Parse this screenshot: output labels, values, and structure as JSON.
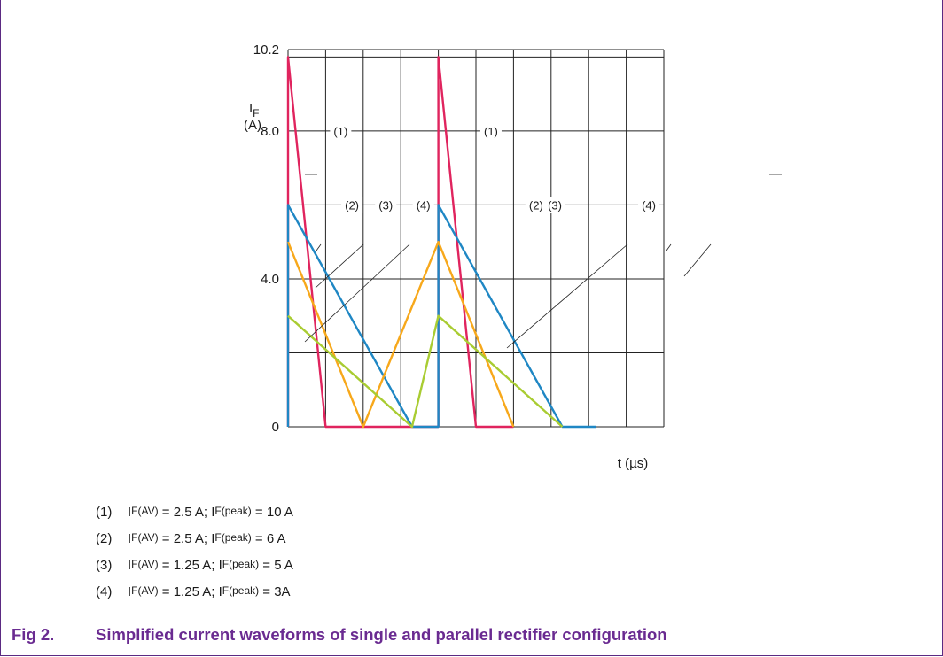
{
  "chart_data": {
    "type": "line",
    "ylabel_main": "I",
    "ylabel_sub": "F",
    "yunit": "(A)",
    "xlabel": "t (µs)",
    "ylim": [
      0,
      10.2
    ],
    "x_divisions": 10,
    "y_gridlines": [
      0,
      2,
      4,
      6,
      8,
      10,
      10.2
    ],
    "ytick_labels": [
      {
        "value": 0,
        "label": "0"
      },
      {
        "value": 4,
        "label": "4.0"
      },
      {
        "value": 8,
        "label": "8.0"
      },
      {
        "value": 10.2,
        "label": "10.2"
      }
    ],
    "series": [
      {
        "id": "1",
        "color": "#e0245e",
        "points": [
          [
            0,
            0
          ],
          [
            0,
            10
          ],
          [
            1,
            0
          ],
          [
            2,
            0
          ],
          [
            4,
            0
          ],
          [
            4,
            10
          ],
          [
            5,
            0
          ],
          [
            6,
            0
          ]
        ]
      },
      {
        "id": "2",
        "color": "#1f87c4",
        "points": [
          [
            0,
            0
          ],
          [
            0,
            6
          ],
          [
            3.3,
            0
          ],
          [
            3.4,
            0
          ],
          [
            4,
            0
          ],
          [
            4,
            6
          ],
          [
            7.3,
            0
          ],
          [
            8.2,
            0
          ]
        ]
      },
      {
        "id": "3",
        "color": "#f7a81b",
        "points": [
          [
            0,
            5
          ],
          [
            2,
            0
          ],
          [
            4,
            5
          ],
          [
            6,
            0
          ]
        ]
      },
      {
        "id": "4",
        "color": "#a9cc32",
        "points": [
          [
            0,
            3
          ],
          [
            3.3,
            0
          ],
          [
            4,
            3
          ],
          [
            7.3,
            0
          ]
        ]
      }
    ],
    "callouts": [
      {
        "text": "(1)",
        "x": 1.4,
        "y": 8.0
      },
      {
        "text": "(1)",
        "x": 5.4,
        "y": 8.0
      },
      {
        "text": "(2)",
        "x": 1.7,
        "y": 6.0
      },
      {
        "text": "(3)",
        "x": 2.6,
        "y": 6.0
      },
      {
        "text": "(4)",
        "x": 3.6,
        "y": 6.0
      },
      {
        "text": "(2)",
        "x": 6.6,
        "y": 6.0
      },
      {
        "text": "(3)",
        "x": 7.1,
        "y": 6.0
      },
      {
        "text": "(4)",
        "x": 9.6,
        "y": 6.0
      }
    ]
  },
  "legend": [
    {
      "num": "(1)",
      "a": "I",
      "a_sub": "F(AV)",
      "b": " = 2.5 A; I",
      "b_sub": "F(peak)",
      "c": " = 10 A"
    },
    {
      "num": "(2)",
      "a": "I",
      "a_sub": "F(AV)",
      "b": " = 2.5 A; I",
      "b_sub": "F(peak)",
      "c": " = 6 A"
    },
    {
      "num": "(3)",
      "a": "I",
      "a_sub": "F(AV)",
      "b": " = 1.25 A; I",
      "b_sub": "F(peak)",
      "c": " = 5 A"
    },
    {
      "num": "(4)",
      "a": "I",
      "a_sub": "F(AV)",
      "b": " = 1.25 A; I",
      "b_sub": "F(peak)",
      "c": " = 3A"
    }
  ],
  "caption": {
    "fig": "Fig 2.",
    "text": "Simplified current waveforms of single and parallel rectifier configuration"
  }
}
